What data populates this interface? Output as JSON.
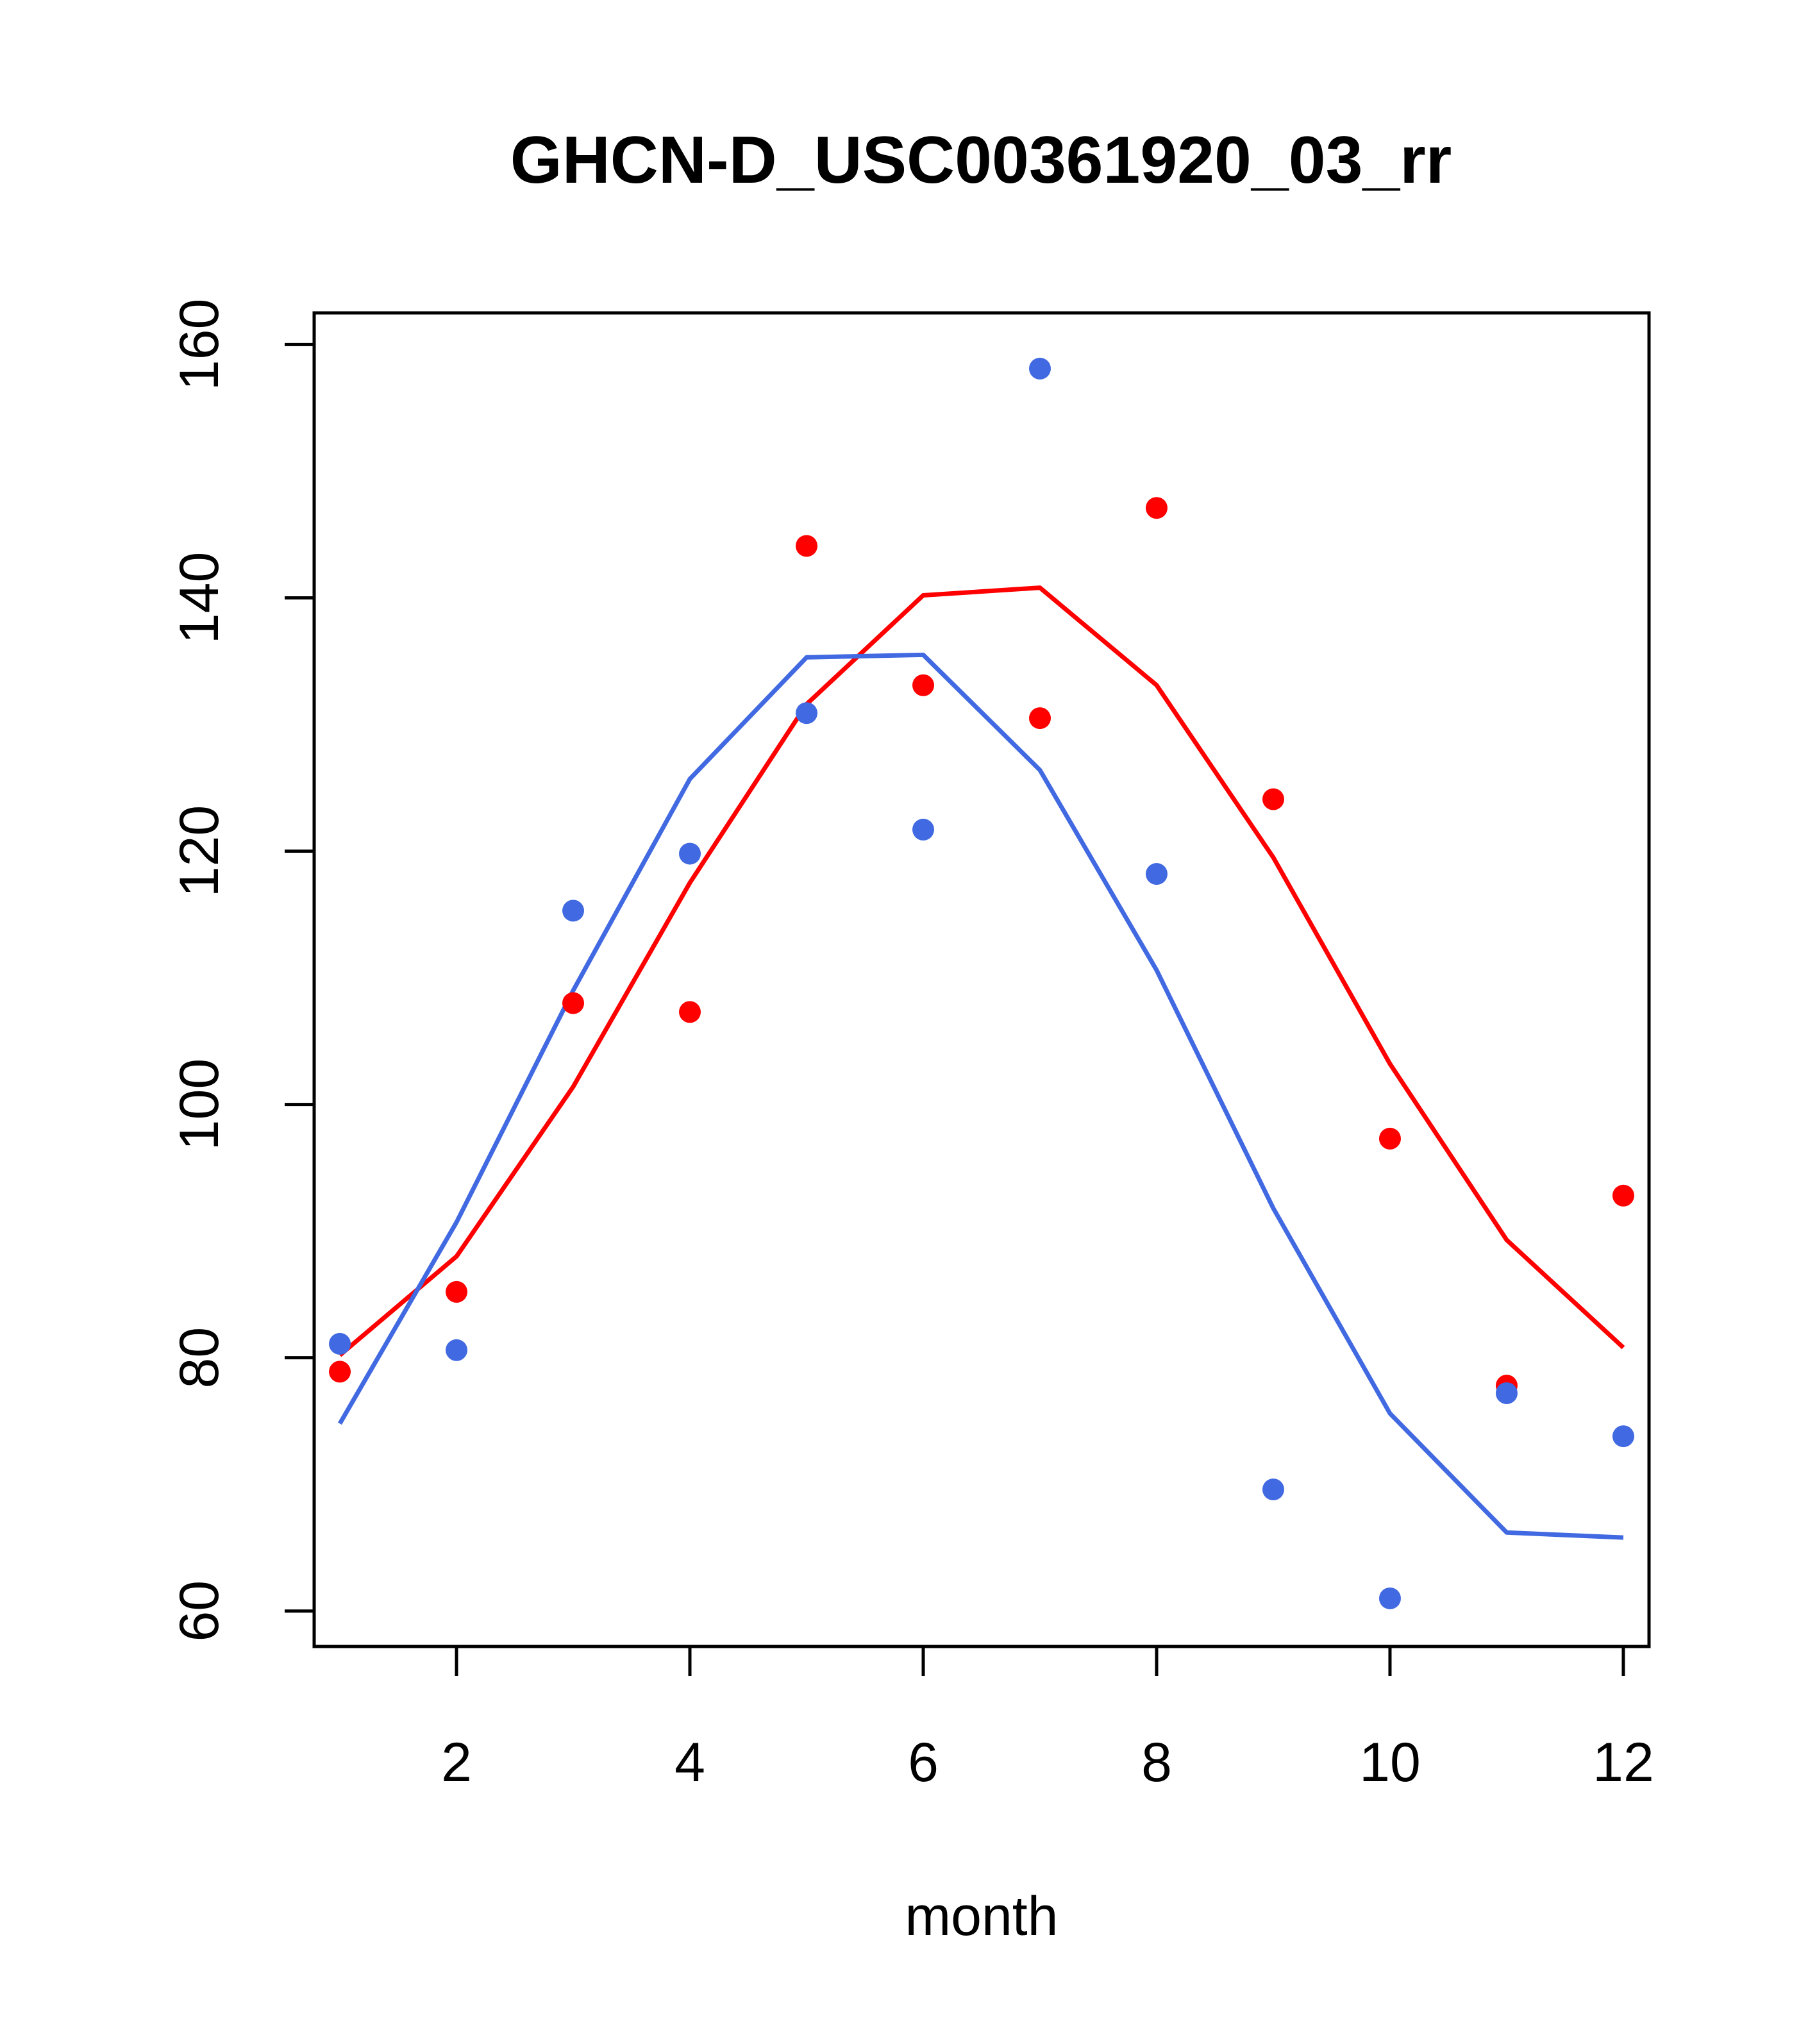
{
  "chart_data": {
    "type": "scatter",
    "title": "GHCN-D_USC00361920_03_rr",
    "xlabel": "month",
    "ylabel": "",
    "xlim": [
      0.78,
      12.22
    ],
    "ylim": [
      57.2,
      162.5
    ],
    "x_ticks": [
      2,
      4,
      6,
      8,
      10,
      12
    ],
    "y_ticks": [
      60,
      80,
      100,
      120,
      140,
      160
    ],
    "x_tick_labels": [
      "2",
      "4",
      "6",
      "8",
      "10",
      "12"
    ],
    "y_tick_labels": [
      "60",
      "80",
      "100",
      "120",
      "140",
      "160"
    ],
    "x": [
      1,
      2,
      3,
      4,
      5,
      6,
      7,
      8,
      9,
      10,
      11,
      12
    ],
    "series": [
      {
        "name": "red points",
        "kind": "points",
        "color": "#FF0000",
        "values": [
          78.9,
          85.2,
          108.0,
          107.3,
          144.1,
          133.1,
          130.5,
          147.1,
          124.1,
          97.3,
          77.8,
          92.8
        ]
      },
      {
        "name": "blue points",
        "kind": "points",
        "color": "#4169E1",
        "values": [
          81.1,
          80.6,
          115.3,
          119.8,
          130.9,
          121.7,
          158.1,
          118.2,
          69.6,
          61.0,
          77.2,
          73.8
        ]
      },
      {
        "name": "red fit",
        "kind": "line",
        "color": "#FF0000",
        "values": [
          80.2,
          88.0,
          101.4,
          117.5,
          131.6,
          140.2,
          140.8,
          133.1,
          119.5,
          103.2,
          89.3,
          80.8
        ]
      },
      {
        "name": "blue fit",
        "kind": "line",
        "color": "#4169E1",
        "values": [
          74.8,
          90.7,
          109.0,
          125.7,
          135.3,
          135.5,
          126.4,
          110.6,
          91.8,
          75.6,
          66.2,
          65.8
        ]
      }
    ]
  }
}
